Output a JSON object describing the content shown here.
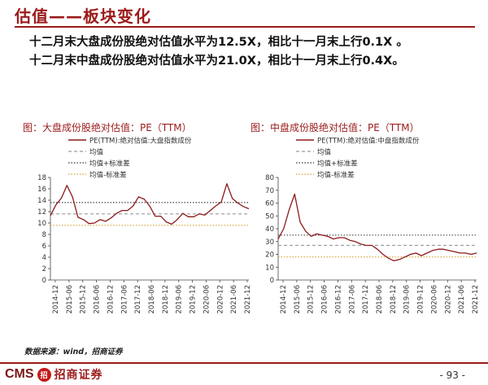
{
  "header": {
    "title": "估值——板块变化",
    "bullets": [
      "十二月末大盘成份股绝对估值水平为12.5X，相比十一月末上行0.1X 。",
      "十二月末中盘成份股绝对估值水平为21.0X，相比十一月末上行0.4X。"
    ]
  },
  "charts": [
    {
      "title": "图：大盘成份股绝对估值：PE（TTM）"
    },
    {
      "title": "图：中盘成份股绝对估值：PE（TTM）"
    }
  ],
  "source": "数据来源：wind，招商证券",
  "footer": {
    "logo_text": "CMS",
    "logo_mark": "招",
    "company": "招商证券",
    "page": "- 93 -"
  },
  "colors": {
    "accent": "#9b1b1b",
    "series": "#8b1a1a",
    "mean": "#9a9a9a",
    "plus_sd": "#333333",
    "minus_sd": "#d4a030"
  },
  "chart_data": [
    {
      "type": "line",
      "title": "图：大盘成份股绝对估值：PE（TTM）",
      "ylim": [
        0,
        18
      ],
      "yticks": [
        0,
        2,
        4,
        6,
        8,
        10,
        12,
        14,
        16,
        18
      ],
      "x_ticks": [
        "2014-12",
        "2015-06",
        "2015-12",
        "2016-06",
        "2016-12",
        "2017-06",
        "2017-12",
        "2018-06",
        "2018-12",
        "2019-06",
        "2019-12",
        "2020-06",
        "2020-12",
        "2021-06",
        "2021-12"
      ],
      "legend_position": "top",
      "series": [
        {
          "name": "PE(TTM):绝对估值:大盘指数成份",
          "style": "solid",
          "values": [
            11.3,
            13.2,
            14.4,
            16.6,
            14.6,
            11.0,
            10.6,
            9.9,
            10.0,
            10.6,
            10.3,
            10.9,
            11.7,
            12.2,
            12.2,
            13.0,
            14.6,
            14.2,
            13.0,
            11.2,
            11.2,
            10.2,
            9.8,
            10.6,
            11.7,
            11.1,
            11.1,
            11.6,
            11.4,
            12.2,
            13.0,
            13.7,
            16.9,
            14.3,
            13.5,
            12.9,
            12.5
          ]
        }
      ],
      "lines": [
        {
          "name": "均值",
          "value": 11.6,
          "style": "dashed"
        },
        {
          "name": "均值+标准差",
          "value": 13.6,
          "style": "dotted"
        },
        {
          "name": "均值-标准差",
          "value": 9.6,
          "style": "dotted"
        }
      ]
    },
    {
      "type": "line",
      "title": "图：中盘成份股绝对估值：PE（TTM）",
      "ylim": [
        0,
        80
      ],
      "yticks": [
        0,
        10,
        20,
        30,
        40,
        50,
        60,
        70,
        80
      ],
      "x_ticks": [
        "2014-12",
        "2015-06",
        "2015-12",
        "2016-06",
        "2016-12",
        "2017-06",
        "2017-12",
        "2018-06",
        "2018-12",
        "2019-06",
        "2019-12",
        "2020-06",
        "2020-12",
        "2021-06",
        "2021-12"
      ],
      "legend_position": "top",
      "series": [
        {
          "name": "PE(TTM):绝对估值:中盘指数成份",
          "style": "solid",
          "values": [
            32,
            40,
            55,
            67,
            45,
            38,
            34,
            36,
            35,
            34,
            32,
            33,
            33,
            31,
            30,
            28,
            27,
            27,
            24,
            20,
            17,
            15,
            16,
            18,
            20,
            21,
            19,
            21,
            23,
            24,
            24,
            23,
            22,
            21,
            21,
            20,
            21
          ]
        }
      ],
      "lines": [
        {
          "name": "均值",
          "value": 27,
          "style": "dashed"
        },
        {
          "name": "均值+标准差",
          "value": 35,
          "style": "dotted"
        },
        {
          "name": "均值-标准差",
          "value": 18,
          "style": "dotted"
        }
      ]
    }
  ]
}
